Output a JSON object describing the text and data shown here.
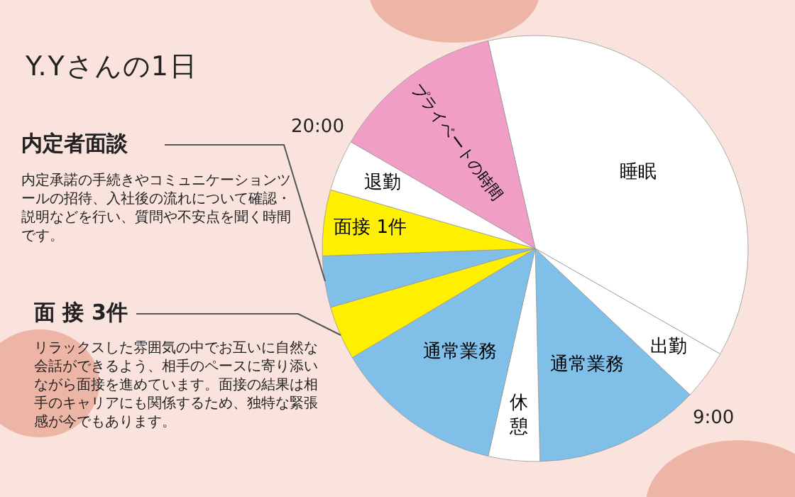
{
  "chart_data": {
    "type": "pie",
    "title": "Y.Yさんの1日",
    "categories": [
      "睡眠",
      "出勤",
      "通常業務",
      "休憩",
      "通常業務",
      null,
      null,
      "面接 1件",
      "退勤",
      "プライベートの時間"
    ],
    "values": [
      36.8,
      3.8,
      12.6,
      3.9,
      12.9,
      4.1,
      3.9,
      5.0,
      3.9,
      13.1
    ],
    "colors": [
      "#ffffff",
      "#ffffff",
      "#80c0e8",
      "#ffffff",
      "#80c0e8",
      "#fff000",
      "#80c0e8",
      "#fff000",
      "#ffffff",
      "#f09ec6"
    ],
    "annotations": [
      "9:00",
      "20:00",
      "内定者面談",
      "内定承諾の手続きやコミュニケーションツールの招待、入社後の流れについて確認・説明などを行い、質問や不安点を聞く時間です。",
      "面 接 3件",
      "リラックスした雰囲気の中でお互いに自然な会話ができるよう、相手のペースに寄り添いながら面接を進めています。面接の結果は相手のキャリアにも関係するため、独特な緊張感が今でもあります。"
    ]
  }
}
